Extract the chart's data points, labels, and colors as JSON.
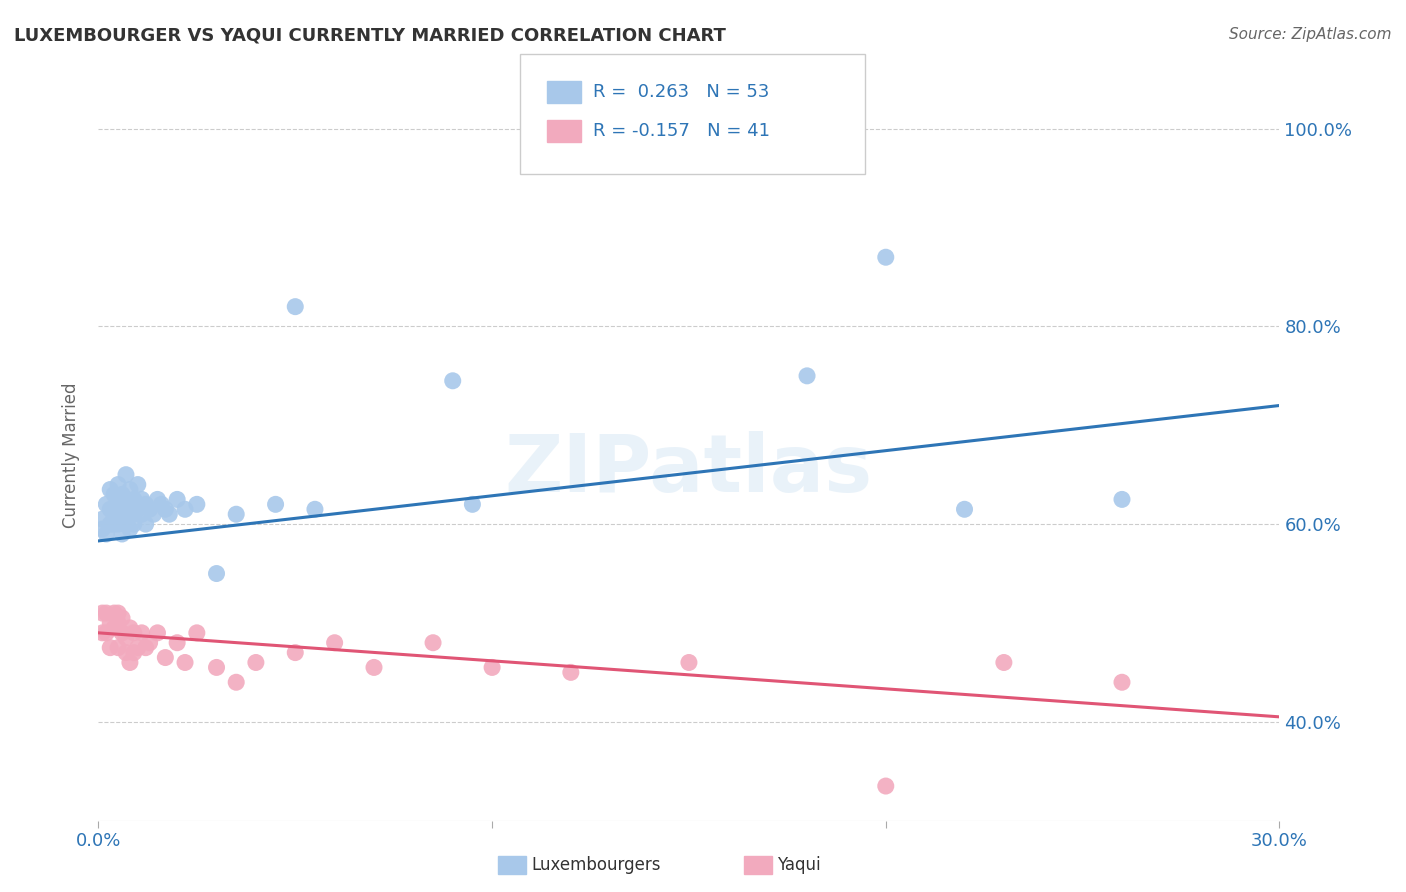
{
  "title": "LUXEMBOURGER VS YAQUI CURRENTLY MARRIED CORRELATION CHART",
  "source": "Source: ZipAtlas.com",
  "ylabel": "Currently Married",
  "yticks": [
    0.4,
    0.6,
    0.8,
    1.0
  ],
  "ytick_labels": [
    "40.0%",
    "60.0%",
    "80.0%",
    "100.0%"
  ],
  "xtick_positions": [
    0.0,
    0.1,
    0.2,
    0.3
  ],
  "xtick_labels": [
    "0.0%",
    "",
    "",
    "30.0%"
  ],
  "xmin": 0.0,
  "xmax": 0.3,
  "ymin": 0.3,
  "ymax": 1.04,
  "blue_R": 0.263,
  "blue_N": 53,
  "pink_R": -0.157,
  "pink_N": 41,
  "blue_color": "#A8C8EA",
  "pink_color": "#F2AABE",
  "blue_line_color": "#2E75B6",
  "pink_line_color": "#E05575",
  "watermark": "ZIPatlas",
  "blue_scatter_x": [
    0.001,
    0.001,
    0.002,
    0.002,
    0.003,
    0.003,
    0.003,
    0.004,
    0.004,
    0.004,
    0.005,
    0.005,
    0.005,
    0.005,
    0.006,
    0.006,
    0.006,
    0.007,
    0.007,
    0.007,
    0.007,
    0.008,
    0.008,
    0.008,
    0.009,
    0.009,
    0.009,
    0.01,
    0.01,
    0.011,
    0.011,
    0.012,
    0.012,
    0.013,
    0.014,
    0.015,
    0.016,
    0.017,
    0.018,
    0.02,
    0.022,
    0.025,
    0.03,
    0.035,
    0.045,
    0.05,
    0.055,
    0.09,
    0.095,
    0.18,
    0.2,
    0.22,
    0.26
  ],
  "blue_scatter_y": [
    0.595,
    0.605,
    0.59,
    0.62,
    0.615,
    0.6,
    0.635,
    0.61,
    0.6,
    0.63,
    0.625,
    0.615,
    0.6,
    0.64,
    0.59,
    0.61,
    0.63,
    0.6,
    0.62,
    0.61,
    0.65,
    0.595,
    0.62,
    0.635,
    0.61,
    0.6,
    0.625,
    0.615,
    0.64,
    0.61,
    0.625,
    0.6,
    0.62,
    0.615,
    0.61,
    0.625,
    0.62,
    0.615,
    0.61,
    0.625,
    0.615,
    0.62,
    0.55,
    0.61,
    0.62,
    0.82,
    0.615,
    0.745,
    0.62,
    0.75,
    0.87,
    0.615,
    0.625
  ],
  "pink_scatter_x": [
    0.001,
    0.001,
    0.002,
    0.002,
    0.003,
    0.003,
    0.004,
    0.004,
    0.005,
    0.005,
    0.005,
    0.006,
    0.006,
    0.007,
    0.007,
    0.008,
    0.008,
    0.009,
    0.009,
    0.01,
    0.011,
    0.012,
    0.013,
    0.015,
    0.017,
    0.02,
    0.022,
    0.025,
    0.03,
    0.035,
    0.04,
    0.05,
    0.06,
    0.07,
    0.085,
    0.1,
    0.12,
    0.15,
    0.2,
    0.23,
    0.26
  ],
  "pink_scatter_y": [
    0.49,
    0.51,
    0.49,
    0.51,
    0.5,
    0.475,
    0.495,
    0.51,
    0.475,
    0.5,
    0.51,
    0.49,
    0.505,
    0.47,
    0.485,
    0.495,
    0.46,
    0.49,
    0.47,
    0.475,
    0.49,
    0.475,
    0.48,
    0.49,
    0.465,
    0.48,
    0.46,
    0.49,
    0.455,
    0.44,
    0.46,
    0.47,
    0.48,
    0.455,
    0.48,
    0.455,
    0.45,
    0.46,
    0.335,
    0.46,
    0.44
  ],
  "title_fontsize": 13,
  "tick_label_color": "#2E75B6",
  "background_color": "#FFFFFF",
  "grid_color": "#CCCCCC"
}
